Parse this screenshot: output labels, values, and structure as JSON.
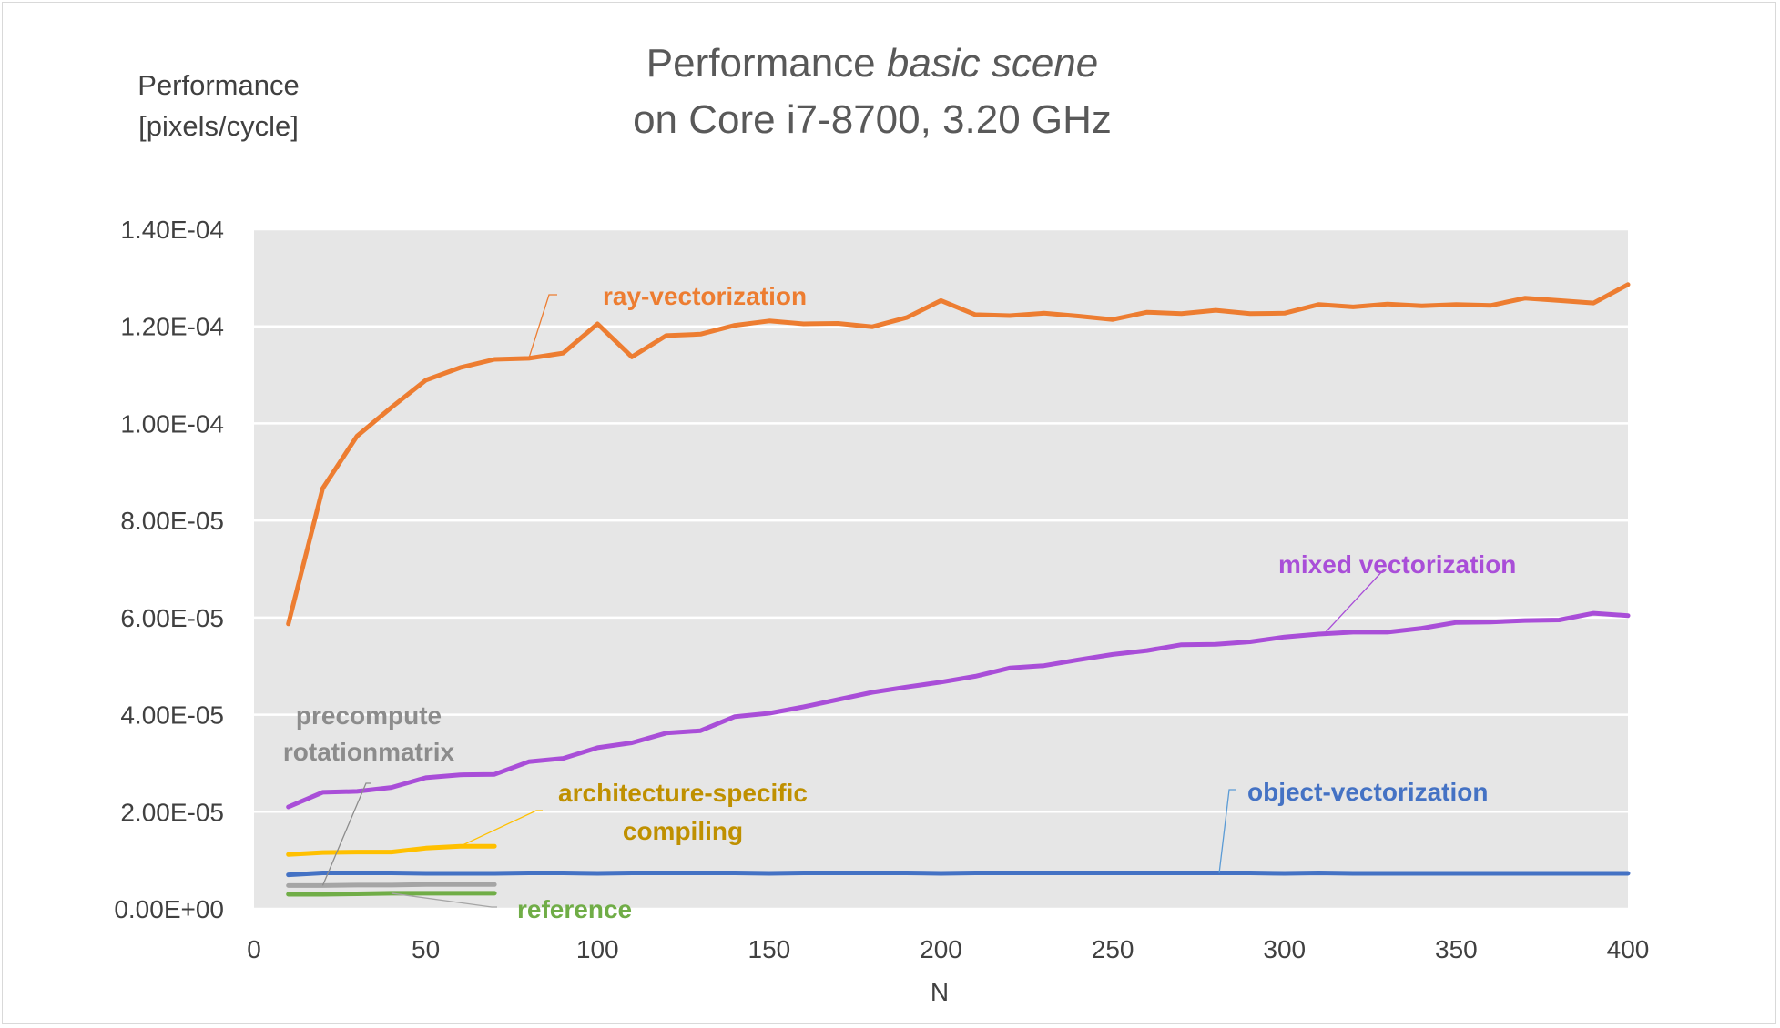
{
  "chart_data": {
    "type": "line",
    "title_line1_normal": "Performance ",
    "title_line1_italic": "basic scene",
    "title_line2": "on Core i7-8700, 3.20 GHz",
    "ylabel_line1": "Performance",
    "ylabel_line2": "[pixels/cycle]",
    "xlabel": "N",
    "xlim": [
      0,
      400
    ],
    "ylim": [
      0,
      0.00014
    ],
    "xticks": [
      0,
      50,
      100,
      150,
      200,
      250,
      300,
      350,
      400
    ],
    "xtick_labels": [
      "0",
      "50",
      "100",
      "150",
      "200",
      "250",
      "300",
      "350",
      "400"
    ],
    "yticks": [
      0,
      2e-05,
      4e-05,
      6e-05,
      8e-05,
      0.0001,
      0.00012,
      0.00014
    ],
    "ytick_labels": [
      "0.00E+00",
      "2.00E-05",
      "4.00E-05",
      "6.00E-05",
      "8.00E-05",
      "1.00E-04",
      "1.20E-04",
      "1.40E-04"
    ],
    "plot_background": "#e6e6e6",
    "grid": "horizontal",
    "series": [
      {
        "name": "ray-vectorization",
        "color": "#ed7d31",
        "label_color": "#ed7d31",
        "x": [
          10,
          20,
          30,
          40,
          50,
          60,
          70,
          80,
          90,
          100,
          110,
          120,
          130,
          140,
          150,
          160,
          170,
          180,
          190,
          200,
          210,
          220,
          230,
          240,
          250,
          260,
          270,
          280,
          290,
          300,
          310,
          320,
          330,
          340,
          350,
          360,
          370,
          380,
          390,
          400
        ],
        "y": [
          5.87e-05,
          8.66e-05,
          9.74e-05,
          0.0001033,
          0.0001089,
          0.0001115,
          0.0001132,
          0.0001134,
          0.0001145,
          0.0001205,
          0.0001137,
          0.0001181,
          0.0001184,
          0.0001202,
          0.0001211,
          0.0001205,
          0.0001206,
          0.0001199,
          0.0001218,
          0.0001253,
          0.0001224,
          0.0001222,
          0.0001227,
          0.0001221,
          0.0001214,
          0.0001229,
          0.0001226,
          0.0001233,
          0.0001226,
          0.0001227,
          0.0001245,
          0.000124,
          0.0001246,
          0.0001242,
          0.0001245,
          0.0001243,
          0.0001258,
          0.0001253,
          0.0001248,
          0.0001286
        ]
      },
      {
        "name": "mixed vectorization",
        "color": "#a94ed8",
        "label_color": "#a94ed8",
        "x": [
          10,
          20,
          30,
          40,
          50,
          60,
          70,
          80,
          90,
          100,
          110,
          120,
          130,
          140,
          150,
          160,
          170,
          180,
          190,
          200,
          210,
          220,
          230,
          240,
          250,
          260,
          270,
          280,
          290,
          300,
          310,
          320,
          330,
          340,
          350,
          360,
          370,
          380,
          390,
          400
        ],
        "y": [
          2.1e-05,
          2.4e-05,
          2.42e-05,
          2.5e-05,
          2.7e-05,
          2.76e-05,
          2.77e-05,
          3.03e-05,
          3.1e-05,
          3.32e-05,
          3.42e-05,
          3.62e-05,
          3.67e-05,
          3.96e-05,
          4.03e-05,
          4.16e-05,
          4.31e-05,
          4.46e-05,
          4.57e-05,
          4.67e-05,
          4.79e-05,
          4.96e-05,
          5.01e-05,
          5.13e-05,
          5.24e-05,
          5.32e-05,
          5.44e-05,
          5.45e-05,
          5.5e-05,
          5.6e-05,
          5.66e-05,
          5.7e-05,
          5.7e-05,
          5.78e-05,
          5.9e-05,
          5.91e-05,
          5.94e-05,
          5.95e-05,
          6.09e-05,
          6.04e-05
        ]
      },
      {
        "name": "object-vectorization",
        "color": "#4472c4",
        "label_color": "#4472c4",
        "x": [
          10,
          20,
          30,
          40,
          50,
          60,
          70,
          80,
          90,
          100,
          110,
          120,
          130,
          140,
          150,
          160,
          170,
          180,
          190,
          200,
          210,
          220,
          230,
          240,
          250,
          260,
          270,
          280,
          290,
          300,
          310,
          320,
          330,
          340,
          350,
          360,
          370,
          380,
          390,
          400
        ],
        "y": [
          7e-06,
          7.4e-06,
          7.4e-06,
          7.4e-06,
          7.3e-06,
          7.3e-06,
          7.3e-06,
          7.4e-06,
          7.4e-06,
          7.3e-06,
          7.4e-06,
          7.4e-06,
          7.4e-06,
          7.4e-06,
          7.3e-06,
          7.4e-06,
          7.4e-06,
          7.4e-06,
          7.4e-06,
          7.3e-06,
          7.4e-06,
          7.4e-06,
          7.4e-06,
          7.4e-06,
          7.4e-06,
          7.4e-06,
          7.4e-06,
          7.4e-06,
          7.4e-06,
          7.3e-06,
          7.4e-06,
          7.3e-06,
          7.3e-06,
          7.3e-06,
          7.3e-06,
          7.3e-06,
          7.3e-06,
          7.3e-06,
          7.3e-06,
          7.3e-06
        ]
      },
      {
        "name": "architecture-specific compiling",
        "color": "#ffc000",
        "label_color": "#bf9000",
        "x": [
          10,
          20,
          30,
          40,
          50,
          60,
          70
        ],
        "y": [
          1.12e-05,
          1.16e-05,
          1.17e-05,
          1.17e-05,
          1.25e-05,
          1.29e-05,
          1.29e-05
        ]
      },
      {
        "name": "precompute rotationmatrix",
        "color": "#a5a5a5",
        "label_color": "#8c8c8c",
        "x": [
          10,
          20,
          30,
          40,
          50,
          60,
          70
        ],
        "y": [
          4.8e-06,
          4.8e-06,
          4.9e-06,
          4.9e-06,
          5e-06,
          5e-06,
          5e-06
        ]
      },
      {
        "name": "reference",
        "color": "#70ad47",
        "label_color": "#70ad47",
        "x": [
          10,
          20,
          30,
          40,
          50,
          60,
          70
        ],
        "y": [
          3e-06,
          3e-06,
          3.1e-06,
          3.2e-06,
          3.2e-06,
          3.2e-06,
          3.2e-06
        ]
      }
    ],
    "labels": {
      "ray": "ray-vectorization",
      "mixed": "mixed vectorization",
      "object": "object-vectorization",
      "arch_line1": "architecture-specific",
      "arch_line2": "compiling",
      "pre_line1": "precompute",
      "pre_line2": "rotationmatrix",
      "reference": "reference"
    }
  }
}
